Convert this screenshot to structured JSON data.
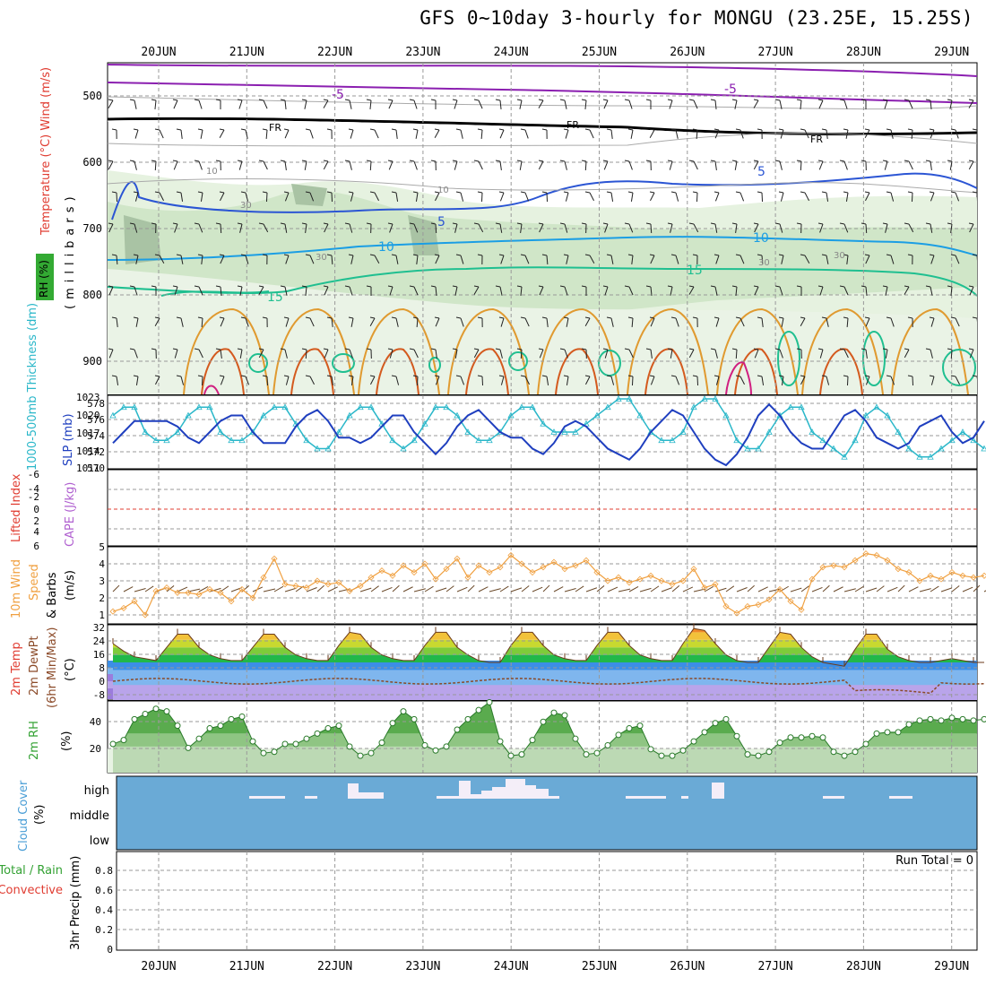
{
  "title": "GFS 0~10day 3-hourly for MONGU (23.25E, 15.25S)",
  "colors": {
    "temp_label": "#e03c31",
    "wind_label": "#000000",
    "rh_label": "#2e7d32",
    "mslp": "#1f3fbf",
    "thickness": "#2ab7c9",
    "wind10": "#f0a040",
    "cloud_bg": "#6aaad6",
    "lifted": "#e03c31",
    "cape": "#b060d0",
    "rh2m": "#33a133",
    "precip_total": "#33a133",
    "precip_conv": "#e03c31"
  },
  "dates": [
    "20JUN",
    "21JUN",
    "22JUN",
    "23JUN",
    "24JUN",
    "25JUN",
    "26JUN",
    "27JUN",
    "28JUN",
    "29JUN"
  ],
  "panels": {
    "upper": {
      "left_label": "Temperature (°C) Wind (m/s)",
      "rh_label": "RH (%)",
      "unit_label": "(millibars)",
      "yticks": [
        "500",
        "600",
        "700",
        "800",
        "900"
      ],
      "contour_labels": [
        "-5",
        "-5",
        "FR",
        "FR",
        "FR",
        "5",
        "5",
        "10",
        "10",
        "15",
        "15",
        "10",
        "10",
        "30",
        "30",
        "30",
        "30"
      ]
    },
    "mslp": {
      "left_label": "1000-500mb Thickness (dm)",
      "right_label": "SLP (mb)",
      "yticks_left": [
        "578",
        "576",
        "574",
        "572",
        "570"
      ],
      "yticks_right": [
        "1023",
        "1020",
        "1017",
        "1014",
        "1011"
      ]
    },
    "stab": {
      "left_label1": "Lifted Index",
      "left_label2": "CAPE (J/kg)",
      "yticks": [
        "-6",
        "-4",
        "-2",
        "0",
        "2",
        "4",
        "6"
      ]
    },
    "wind10": {
      "label1": "10m Wind",
      "label2": "Speed",
      "label3": "& Barbs",
      "unit": "(m/s)",
      "yticks": [
        "5",
        "4",
        "3",
        "2",
        "1"
      ]
    },
    "temp2m": {
      "label1": "2m Temp",
      "label2": "2m DewPt",
      "label3": "(6hr Min/Max)",
      "unit": "(°C)",
      "yticks": [
        "32",
        "24",
        "16",
        "8",
        "0",
        "-8"
      ]
    },
    "rh2m": {
      "label": "2m RH",
      "unit": "(%)",
      "yticks": [
        "40",
        "20"
      ]
    },
    "cloud": {
      "label": "Cloud Cover",
      "unit": "(%)",
      "levels": [
        "high",
        "middle",
        "low"
      ]
    },
    "precip": {
      "label1": "Total / Rain",
      "label2": "Convective",
      "label3": "3hr Precip (mm)",
      "run_total": "Run Total = 0",
      "yticks": [
        "0.8",
        "0.6",
        "0.4",
        "0.2",
        "0"
      ]
    }
  },
  "chart_data": [
    {
      "type": "line",
      "name": "SLP (mb)",
      "x": [
        0,
        3,
        6,
        9,
        12,
        15,
        18,
        21,
        24,
        27,
        30,
        33,
        36,
        39,
        42,
        45,
        48,
        51,
        54,
        57,
        60,
        63,
        66,
        69,
        72,
        75,
        78,
        81,
        84,
        87,
        90,
        93,
        96,
        99,
        102,
        105,
        108,
        111,
        114,
        117,
        120,
        123,
        126,
        129,
        132,
        135,
        138,
        141,
        144,
        147,
        150,
        153,
        156,
        159,
        162,
        165,
        168,
        171,
        174,
        177,
        180,
        183,
        186,
        189,
        192,
        195,
        198,
        201,
        204,
        207,
        210,
        213,
        216,
        219,
        222,
        225,
        228,
        231,
        234,
        237,
        240,
        243
      ],
      "values": [
        1015,
        1017,
        1019,
        1019,
        1019,
        1019,
        1018,
        1016,
        1015,
        1017,
        1019,
        1020,
        1020,
        1017,
        1015,
        1015,
        1015,
        1018,
        1020,
        1021,
        1019,
        1016,
        1016,
        1015,
        1016,
        1018,
        1020,
        1020,
        1017,
        1015,
        1013,
        1015,
        1018,
        1020,
        1021,
        1019,
        1017,
        1016,
        1016,
        1014,
        1013,
        1015,
        1018,
        1019,
        1018,
        1016,
        1014,
        1013,
        1012,
        1014,
        1017,
        1019,
        1021,
        1020,
        1017,
        1014,
        1012,
        1011,
        1013,
        1016,
        1020,
        1022,
        1020,
        1017,
        1015,
        1014,
        1014,
        1017,
        1020,
        1021,
        1019,
        1016,
        1015,
        1014,
        1015,
        1018,
        1019,
        1020,
        1017,
        1015,
        1016,
        1019
      ],
      "ylim": [
        1011,
        1023
      ]
    },
    {
      "type": "line",
      "name": "1000-500mb Thickness (dm)",
      "x": [
        0,
        3,
        6,
        9,
        12,
        15,
        18,
        21,
        24,
        27,
        30,
        33,
        36,
        39,
        42,
        45,
        48,
        51,
        54,
        57,
        60,
        63,
        66,
        69,
        72,
        75,
        78,
        81,
        84,
        87,
        90,
        93,
        96,
        99,
        102,
        105,
        108,
        111,
        114,
        117,
        120,
        123,
        126,
        129,
        132,
        135,
        138,
        141,
        144,
        147,
        150,
        153,
        156,
        159,
        162,
        165,
        168,
        171,
        174,
        177,
        180,
        183,
        186,
        189,
        192,
        195,
        198,
        201,
        204,
        207,
        210,
        213,
        216,
        219,
        222,
        225,
        228,
        231,
        234,
        237,
        240,
        243
      ],
      "values": [
        576,
        577,
        577,
        574,
        573,
        573,
        574,
        576,
        577,
        577,
        574,
        573,
        573,
        574,
        576,
        577,
        577,
        575,
        573,
        572,
        572,
        574,
        576,
        577,
        577,
        575,
        573,
        572,
        573,
        575,
        577,
        577,
        576,
        574,
        573,
        573,
        574,
        576,
        577,
        577,
        575,
        574,
        574,
        574,
        575,
        576,
        577,
        578,
        578,
        576,
        574,
        573,
        573,
        574,
        577,
        578,
        578,
        576,
        573,
        572,
        572,
        574,
        576,
        577,
        577,
        574,
        573,
        572,
        571,
        573,
        576,
        577,
        576,
        574,
        572,
        571,
        571,
        572,
        573,
        574,
        573,
        572
      ],
      "ylim": [
        570,
        578
      ]
    },
    {
      "type": "line",
      "name": "10m Wind Speed (m/s)",
      "x": [
        0,
        3,
        6,
        9,
        12,
        15,
        18,
        21,
        24,
        27,
        30,
        33,
        36,
        39,
        42,
        45,
        48,
        51,
        54,
        57,
        60,
        63,
        66,
        69,
        72,
        75,
        78,
        81,
        84,
        87,
        90,
        93,
        96,
        99,
        102,
        105,
        108,
        111,
        114,
        117,
        120,
        123,
        126,
        129,
        132,
        135,
        138,
        141,
        144,
        147,
        150,
        153,
        156,
        159,
        162,
        165,
        168,
        171,
        174,
        177,
        180,
        183,
        186,
        189,
        192,
        195,
        198,
        201,
        204,
        207,
        210,
        213,
        216,
        219,
        222,
        225,
        228,
        231,
        234,
        237,
        240,
        243
      ],
      "values": [
        1.2,
        1.4,
        1.8,
        1,
        2.4,
        2.6,
        2.3,
        2.3,
        2.2,
        2.5,
        2.3,
        1.8,
        2.5,
        2,
        3.2,
        4.3,
        2.8,
        2.7,
        2.6,
        3,
        2.8,
        2.9,
        2.4,
        2.7,
        3.2,
        3.6,
        3.3,
        3.9,
        3.5,
        4,
        3.1,
        3.7,
        4.3,
        3.2,
        3.9,
        3.5,
        3.8,
        4.5,
        4,
        3.5,
        3.8,
        4.1,
        3.7,
        3.9,
        4.2,
        3.5,
        3,
        3.2,
        2.9,
        3.1,
        3.3,
        3,
        2.8,
        3,
        3.7,
        2.6,
        2.8,
        1.5,
        1.1,
        1.5,
        1.6,
        1.9,
        2.5,
        1.8,
        1.3,
        3.1,
        3.8,
        3.9,
        3.8,
        4.2,
        4.6,
        4.5,
        4.2,
        3.7,
        3.5,
        3,
        3.3,
        3.1,
        3.5,
        3.3,
        3.2,
        3.3
      ],
      "ylim": [
        1,
        5
      ]
    },
    {
      "type": "area",
      "name": "2m Temp (°C)",
      "x": [
        0,
        3,
        6,
        9,
        12,
        15,
        18,
        21,
        24,
        27,
        30,
        33,
        36,
        39,
        42,
        45,
        48,
        51,
        54,
        57,
        60,
        63,
        66,
        69,
        72,
        75,
        78,
        81,
        84,
        87,
        90,
        93,
        96,
        99,
        102,
        105,
        108,
        111,
        114,
        117,
        120,
        123,
        126,
        129,
        132,
        135,
        138,
        141,
        144,
        147,
        150,
        153,
        156,
        159,
        162,
        165,
        168,
        171,
        174,
        177,
        180,
        183,
        186,
        189,
        192,
        195,
        198,
        201,
        204,
        207,
        210,
        213,
        216,
        219,
        222,
        225,
        228,
        231,
        234,
        237,
        240,
        243
      ],
      "values": [
        22,
        18,
        15,
        14,
        13,
        20,
        27,
        27,
        20,
        16,
        14,
        13,
        13,
        20,
        27,
        27,
        20,
        16,
        14,
        13,
        13,
        21,
        28,
        27,
        20,
        16,
        14,
        13,
        13,
        21,
        28,
        28,
        20,
        16,
        13,
        12,
        12,
        21,
        28,
        28,
        21,
        16,
        14,
        13,
        13,
        21,
        28,
        28,
        21,
        16,
        14,
        13,
        13,
        22,
        30,
        29,
        22,
        16,
        13,
        12,
        12,
        20,
        28,
        27,
        20,
        15,
        12,
        11,
        10,
        19,
        27,
        27,
        19,
        15,
        13,
        12,
        12,
        13,
        14,
        13,
        12,
        12
      ],
      "ylim": [
        -8,
        32
      ]
    },
    {
      "type": "area",
      "name": "2m RH (%)",
      "x": [
        0,
        3,
        6,
        9,
        12,
        15,
        18,
        21,
        24,
        27,
        30,
        33,
        36,
        39,
        42,
        45,
        48,
        51,
        54,
        57,
        60,
        63,
        66,
        69,
        72,
        75,
        78,
        81,
        84,
        87,
        90,
        93,
        96,
        99,
        102,
        105,
        108,
        111,
        114,
        117,
        120,
        123,
        126,
        129,
        132,
        135,
        138,
        141,
        144,
        147,
        150,
        153,
        156,
        159,
        162,
        165,
        168,
        171,
        174,
        177,
        180,
        183,
        186,
        189,
        192,
        195,
        198,
        201,
        204,
        207,
        210,
        213,
        216,
        219,
        222,
        225,
        228,
        231,
        234,
        237,
        240,
        243
      ],
      "values": [
        22,
        25,
        41,
        45,
        49,
        47,
        36,
        19,
        26,
        34,
        36,
        41,
        43,
        24,
        15,
        16,
        22,
        22,
        26,
        30,
        34,
        36,
        20,
        13,
        15,
        23,
        38,
        47,
        41,
        21,
        17,
        20,
        33,
        41,
        48,
        54,
        24,
        13,
        14,
        25,
        39,
        46,
        44,
        26,
        14,
        15,
        21,
        29,
        34,
        36,
        18,
        13,
        13,
        17,
        24,
        31,
        38,
        41,
        28,
        14,
        13,
        16,
        23,
        27,
        27,
        28,
        27,
        16,
        13,
        16,
        22,
        30,
        31,
        31,
        37,
        40,
        41,
        40,
        42,
        41,
        40,
        41
      ],
      "ylim": [
        0,
        55
      ]
    }
  ]
}
